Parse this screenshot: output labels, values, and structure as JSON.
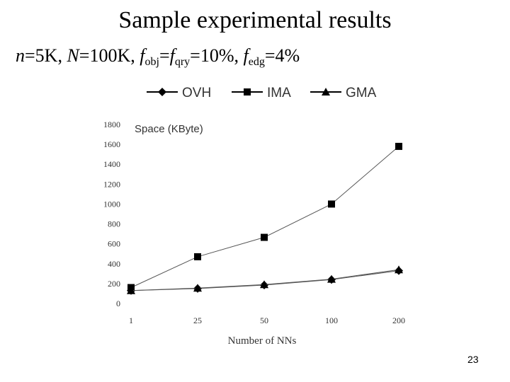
{
  "slide": {
    "title": "Sample experimental results",
    "subtitle": {
      "n_label": "n",
      "n_value": "=5K, ",
      "N_label": "N",
      "N_value": "=100K, ",
      "f": "f",
      "obj_sub": "obj",
      "eq1": "=",
      "qry_sub": "qry",
      "qry_value": "=10%, ",
      "edg_sub": "edg",
      "edg_value": "=4%"
    },
    "page_number": "23"
  },
  "chart_data": {
    "type": "line",
    "title": "",
    "ylabel": "Space (KByte)",
    "xlabel": "Number of NNs",
    "categories": [
      "1",
      "25",
      "50",
      "100",
      "200"
    ],
    "ylim": [
      0,
      1800
    ],
    "yticks": [
      0,
      200,
      400,
      600,
      800,
      1000,
      1200,
      1400,
      1600,
      1800
    ],
    "legend_position": "top",
    "series": [
      {
        "name": "OVH",
        "marker": "diamond",
        "values": [
          130,
          150,
          185,
          240,
          330
        ]
      },
      {
        "name": "IMA",
        "marker": "square",
        "values": [
          160,
          470,
          665,
          1000,
          1580
        ]
      },
      {
        "name": "GMA",
        "marker": "triangle",
        "values": [
          130,
          155,
          190,
          245,
          340
        ]
      }
    ]
  }
}
